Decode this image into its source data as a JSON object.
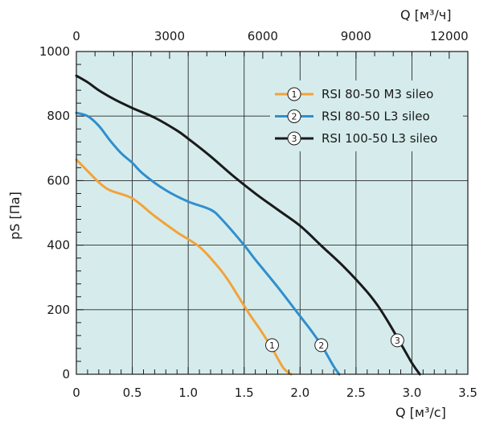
{
  "chart_data": {
    "type": "line",
    "xlabel": "Q [м³/с]",
    "x2label": "Q [м³/ч]",
    "ylabel": "pS [Па]",
    "xlim": [
      0,
      3.5
    ],
    "x2lim": [
      0,
      12600
    ],
    "ylim": [
      0,
      1000
    ],
    "x_ticks": [
      "0",
      "0.5",
      "1.0",
      "1.5",
      "2.0",
      "2.5",
      "3.0",
      "3.5"
    ],
    "x2_ticks": [
      "0",
      "3000",
      "6000",
      "9000",
      "12000"
    ],
    "y_ticks": [
      "0",
      "200",
      "400",
      "600",
      "800",
      "1000"
    ],
    "grid": true,
    "legend_position": "top-right",
    "series": [
      {
        "marker": "1",
        "name": "RSI 80-50 M3 sileo",
        "color": "#f2a33a",
        "points": [
          [
            0,
            665
          ],
          [
            0.1,
            630
          ],
          [
            0.2,
            595
          ],
          [
            0.3,
            570
          ],
          [
            0.5,
            545
          ],
          [
            0.7,
            490
          ],
          [
            0.9,
            440
          ],
          [
            1.1,
            395
          ],
          [
            1.25,
            340
          ],
          [
            1.35,
            295
          ],
          [
            1.45,
            240
          ],
          [
            1.55,
            185
          ],
          [
            1.65,
            135
          ],
          [
            1.75,
            80
          ],
          [
            1.85,
            20
          ],
          [
            1.92,
            0
          ]
        ]
      },
      {
        "marker": "2",
        "name": "RSI 80-50 L3 sileo",
        "color": "#2f8fce",
        "points": [
          [
            0,
            810
          ],
          [
            0.1,
            800
          ],
          [
            0.2,
            770
          ],
          [
            0.3,
            725
          ],
          [
            0.4,
            685
          ],
          [
            0.5,
            655
          ],
          [
            0.6,
            620
          ],
          [
            0.8,
            570
          ],
          [
            1.0,
            535
          ],
          [
            1.2,
            510
          ],
          [
            1.3,
            480
          ],
          [
            1.5,
            400
          ],
          [
            1.6,
            355
          ],
          [
            1.8,
            270
          ],
          [
            2.0,
            180
          ],
          [
            2.1,
            135
          ],
          [
            2.2,
            85
          ],
          [
            2.3,
            25
          ],
          [
            2.35,
            0
          ]
        ]
      },
      {
        "marker": "3",
        "name": "RSI 100-50 L3 sileo",
        "color": "#1a1a1a",
        "points": [
          [
            0,
            925
          ],
          [
            0.1,
            905
          ],
          [
            0.2,
            880
          ],
          [
            0.35,
            850
          ],
          [
            0.5,
            825
          ],
          [
            0.7,
            795
          ],
          [
            0.9,
            755
          ],
          [
            1.0,
            730
          ],
          [
            1.2,
            675
          ],
          [
            1.4,
            615
          ],
          [
            1.6,
            560
          ],
          [
            1.8,
            510
          ],
          [
            2.0,
            460
          ],
          [
            2.2,
            395
          ],
          [
            2.4,
            330
          ],
          [
            2.6,
            255
          ],
          [
            2.7,
            210
          ],
          [
            2.8,
            155
          ],
          [
            2.9,
            95
          ],
          [
            3.0,
            35
          ],
          [
            3.07,
            0
          ]
        ]
      }
    ],
    "markers": [
      {
        "label": "1",
        "x": 1.75,
        "y": 90
      },
      {
        "label": "2",
        "x": 2.19,
        "y": 90
      },
      {
        "label": "3",
        "x": 2.87,
        "y": 105
      }
    ]
  }
}
